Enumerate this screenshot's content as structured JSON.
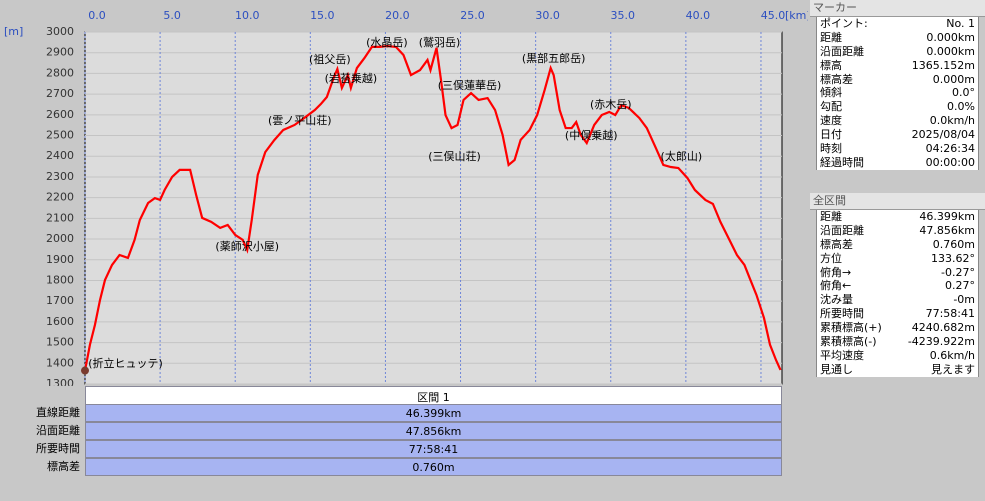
{
  "chart_data": {
    "type": "line",
    "x_unit": "[km]",
    "y_unit": "[m]",
    "color": "#ff0000",
    "grid": true,
    "xlim": [
      0,
      46.4
    ],
    "ylim": [
      1300,
      3000
    ],
    "xticks": [
      {
        "value": 0,
        "label": "0.0"
      },
      {
        "value": 5,
        "label": "5.0"
      },
      {
        "value": 10,
        "label": "10.0"
      },
      {
        "value": 15,
        "label": "15.0"
      },
      {
        "value": 20,
        "label": "20.0"
      },
      {
        "value": 25,
        "label": "25.0"
      },
      {
        "value": 30,
        "label": "30.0"
      },
      {
        "value": 35,
        "label": "35.0"
      },
      {
        "value": 40,
        "label": "40.0"
      },
      {
        "value": 45,
        "label": "45.0"
      }
    ],
    "yticks": [
      1300,
      1400,
      1500,
      1600,
      1700,
      1800,
      1900,
      2000,
      2100,
      2200,
      2300,
      2400,
      2500,
      2600,
      2700,
      2800,
      2900,
      3000
    ],
    "x": [
      0,
      0.33,
      0.66,
      1.0,
      1.33,
      1.8,
      2.3,
      2.86,
      3.3,
      3.65,
      4.2,
      4.65,
      5.0,
      5.3,
      5.8,
      6.3,
      7.0,
      7.4,
      7.8,
      8.4,
      9.0,
      9.5,
      10.0,
      10.5,
      10.8,
      11.1,
      11.5,
      12.0,
      12.6,
      13.2,
      13.95,
      14.6,
      15.3,
      15.7,
      16.1,
      16.55,
      16.8,
      17.1,
      17.5,
      17.7,
      18.1,
      18.6,
      19.1,
      19.6,
      20.1,
      20.7,
      21.2,
      21.7,
      22.3,
      22.8,
      23.0,
      23.4,
      23.7,
      24.0,
      24.4,
      24.8,
      25.2,
      25.7,
      26.2,
      26.8,
      27.3,
      27.8,
      28.2,
      28.6,
      29.0,
      29.6,
      30.1,
      30.6,
      31.0,
      31.2,
      31.6,
      32.0,
      32.4,
      32.7,
      33.0,
      33.4,
      33.9,
      34.4,
      34.9,
      35.3,
      35.7,
      36.2,
      36.9,
      37.4,
      38.0,
      38.5,
      39.0,
      39.5,
      40.1,
      40.6,
      41.3,
      41.8,
      42.3,
      42.9,
      43.4,
      43.9,
      44.3,
      44.7,
      45.2,
      45.6,
      46.0,
      46.3
    ],
    "values": [
      1365,
      1490,
      1585,
      1706,
      1802,
      1875,
      1923,
      1909,
      1996,
      2092,
      2174,
      2198,
      2189,
      2237,
      2300,
      2334,
      2334,
      2213,
      2102,
      2083,
      2054,
      2068,
      2020,
      1996,
      1947,
      2092,
      2310,
      2420,
      2478,
      2527,
      2551,
      2585,
      2623,
      2652,
      2686,
      2778,
      2821,
      2730,
      2792,
      2730,
      2826,
      2874,
      2928,
      2928,
      2932,
      2928,
      2889,
      2792,
      2816,
      2865,
      2816,
      2923,
      2768,
      2599,
      2536,
      2551,
      2672,
      2705,
      2672,
      2681,
      2623,
      2503,
      2358,
      2382,
      2479,
      2527,
      2599,
      2720,
      2826,
      2792,
      2623,
      2536,
      2536,
      2565,
      2503,
      2464,
      2551,
      2599,
      2614,
      2599,
      2647,
      2633,
      2585,
      2536,
      2440,
      2358,
      2348,
      2343,
      2295,
      2237,
      2189,
      2170,
      2083,
      1996,
      1923,
      1875,
      1802,
      1730,
      1619,
      1490,
      1416,
      1368
    ],
    "annotations": [
      {
        "text": "(折立ヒュッテ)",
        "x": 2.7,
        "y": 1397
      },
      {
        "text": "(薬師沢小屋)",
        "x": 10.8,
        "y": 1962
      },
      {
        "text": "(雲ノ平山荘)",
        "x": 14.3,
        "y": 2570
      },
      {
        "text": "(祖父岳)",
        "x": 16.3,
        "y": 2865
      },
      {
        "text": "(岩苔乗越)",
        "x": 17.7,
        "y": 2773
      },
      {
        "text": "(水晶岳)",
        "x": 20.1,
        "y": 2947
      },
      {
        "text": "(鷲羽岳)",
        "x": 23.6,
        "y": 2947
      },
      {
        "text": "(三俣蓮華岳)",
        "x": 25.6,
        "y": 2739
      },
      {
        "text": "(三俣山荘)",
        "x": 24.6,
        "y": 2396
      },
      {
        "text": "(黒部五郎岳)",
        "x": 31.2,
        "y": 2870
      },
      {
        "text": "(中俣乗越)",
        "x": 33.7,
        "y": 2498
      },
      {
        "text": "(赤木岳)",
        "x": 35.0,
        "y": 2648
      },
      {
        "text": "(太郎山)",
        "x": 39.7,
        "y": 2396
      }
    ]
  },
  "section": {
    "header": "区間 1",
    "rows": [
      [
        "直線距離",
        "46.399km"
      ],
      [
        "沿面距離",
        "47.856km"
      ],
      [
        "所要時間",
        "77:58:41"
      ],
      [
        "標高差",
        "0.760m"
      ]
    ]
  },
  "marker": {
    "title": "マーカー",
    "rows": [
      [
        "ポイント:",
        "No. 1"
      ],
      [
        "距離",
        "0.000km"
      ],
      [
        "沿面距離",
        "0.000km"
      ],
      [
        "標高",
        "1365.152m"
      ],
      [
        "標高差",
        "0.000m"
      ],
      [
        "傾斜",
        "0.0°"
      ],
      [
        "勾配",
        "0.0%"
      ],
      [
        "速度",
        "0.0km/h"
      ],
      [
        "日付",
        "2025/08/04"
      ],
      [
        "時刻",
        "04:26:34"
      ],
      [
        "経過時間",
        "00:00:00"
      ]
    ]
  },
  "total": {
    "title": "全区間",
    "rows": [
      [
        "距離",
        "46.399km"
      ],
      [
        "沿面距離",
        "47.856km"
      ],
      [
        "標高差",
        "0.760m"
      ],
      [
        "方位",
        "133.62°"
      ],
      [
        "俯角→",
        "-0.27°"
      ],
      [
        "俯角←",
        "0.27°"
      ],
      [
        "沈み量",
        "-0m"
      ],
      [
        "所要時間",
        "77:58:41"
      ],
      [
        "累積標高(+)",
        "4240.682m"
      ],
      [
        "累積標高(-)",
        "-4239.922m"
      ],
      [
        "平均速度",
        "0.6km/h"
      ],
      [
        "見通し",
        "見えます"
      ]
    ]
  }
}
